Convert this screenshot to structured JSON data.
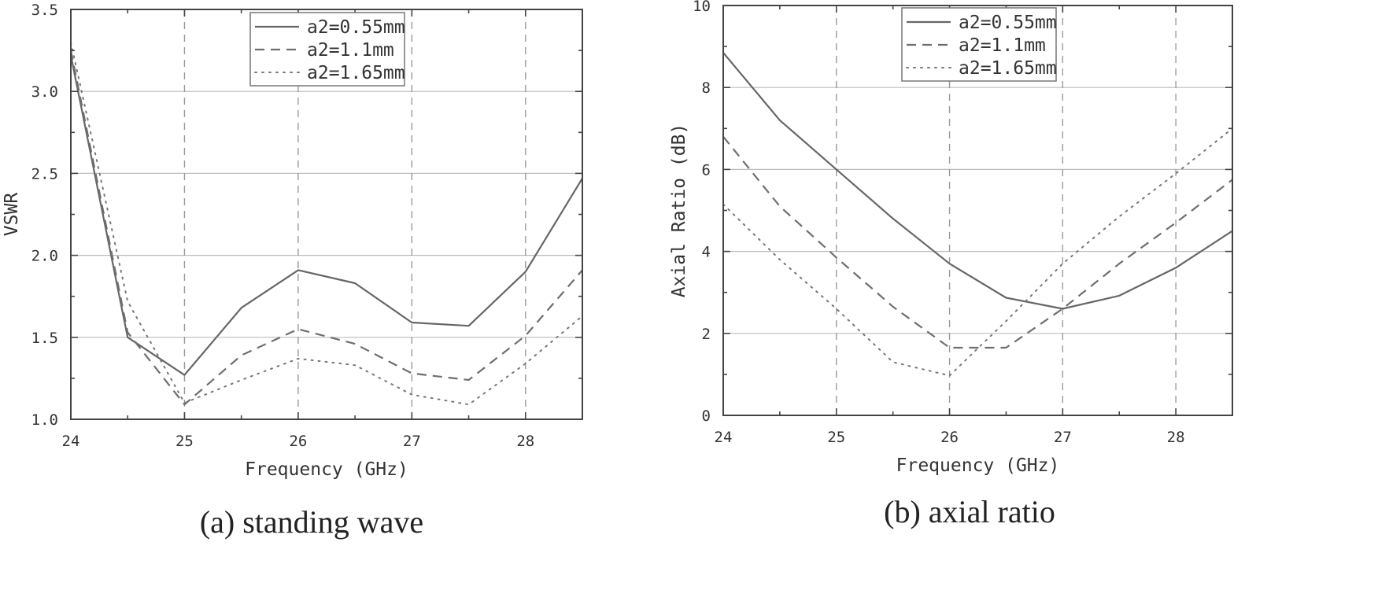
{
  "chart_data": [
    {
      "type": "line",
      "caption": "(a) standing wave",
      "xlabel": "Frequency (GHz)",
      "ylabel": "VSWR",
      "xlim": [
        24,
        28.5
      ],
      "ylim": [
        1.0,
        3.5
      ],
      "xticks": [
        24,
        25,
        26,
        27,
        28
      ],
      "xtick_labels": [
        "24",
        "25",
        "26",
        "27",
        "28"
      ],
      "yticks": [
        1.0,
        1.5,
        2.0,
        2.5,
        3.0,
        3.5
      ],
      "ytick_labels": [
        "1.0",
        "1.5",
        "2.0",
        "2.5",
        "3.0",
        "3.5"
      ],
      "grid": true,
      "legend_position": "top-center",
      "x": [
        24,
        24.5,
        25,
        25.5,
        26,
        26.5,
        27,
        27.5,
        28,
        28.5
      ],
      "series": [
        {
          "name": "a2=0.55mm",
          "style": "solid",
          "values": [
            3.22,
            1.5,
            1.27,
            1.68,
            1.91,
            1.83,
            1.59,
            1.57,
            1.9,
            2.47
          ]
        },
        {
          "name": "a2=1.1mm",
          "style": "dashed",
          "values": [
            3.25,
            1.53,
            1.09,
            1.39,
            1.55,
            1.46,
            1.28,
            1.24,
            1.51,
            1.91
          ]
        },
        {
          "name": "a2=1.65mm",
          "style": "dotted",
          "values": [
            3.3,
            1.72,
            1.1,
            1.24,
            1.37,
            1.33,
            1.15,
            1.09,
            1.34,
            1.63
          ]
        }
      ]
    },
    {
      "type": "line",
      "caption": "(b) axial ratio",
      "xlabel": "Frequency (GHz)",
      "ylabel": "Axial Ratio (dB)",
      "xlim": [
        24,
        28.5
      ],
      "ylim": [
        0,
        10
      ],
      "xticks": [
        24,
        25,
        26,
        27,
        28
      ],
      "xtick_labels": [
        "24",
        "25",
        "26",
        "27",
        "28"
      ],
      "yticks": [
        0,
        2,
        4,
        6,
        8,
        10
      ],
      "ytick_labels": [
        "0",
        "2",
        "4",
        "6",
        "8",
        "10"
      ],
      "grid": true,
      "legend_position": "top-center",
      "x": [
        24,
        24.5,
        25,
        25.5,
        26,
        26.5,
        27,
        27.5,
        28,
        28.5
      ],
      "series": [
        {
          "name": "a2=0.55mm",
          "style": "solid",
          "values": [
            8.85,
            7.2,
            6.0,
            4.8,
            3.7,
            2.87,
            2.6,
            2.92,
            3.6,
            4.5
          ]
        },
        {
          "name": "a2=1.1mm",
          "style": "dashed",
          "values": [
            6.8,
            5.1,
            3.85,
            2.65,
            1.65,
            1.65,
            2.6,
            3.7,
            4.7,
            5.75
          ]
        },
        {
          "name": "a2=1.65mm",
          "style": "dotted",
          "values": [
            5.15,
            3.8,
            2.6,
            1.3,
            0.97,
            2.3,
            3.7,
            4.85,
            5.9,
            7.0
          ]
        }
      ]
    }
  ]
}
